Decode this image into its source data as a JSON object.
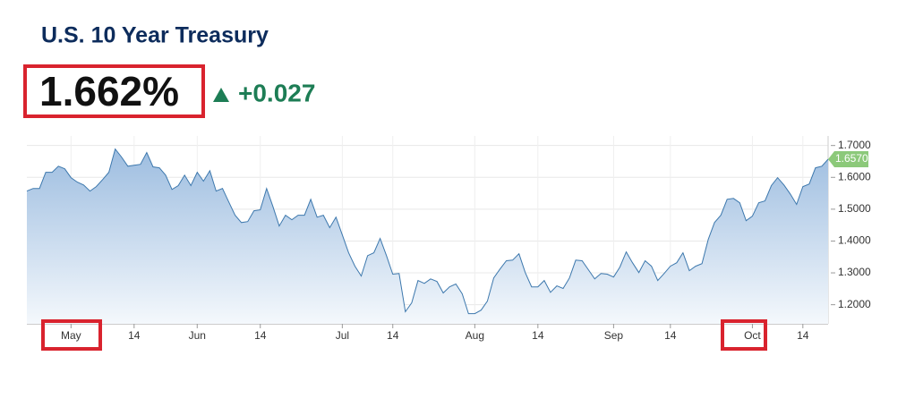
{
  "title": "U.S. 10 Year Treasury",
  "price": "1.662%",
  "change": "+0.027",
  "chart_data": {
    "type": "area",
    "color": "#3d78ad",
    "grid": true,
    "categories": [
      null,
      null,
      null,
      null,
      null,
      null,
      null,
      "May",
      null,
      null,
      null,
      null,
      null,
      null,
      null,
      null,
      null,
      "14",
      null,
      null,
      null,
      null,
      null,
      null,
      null,
      null,
      null,
      "Jun",
      null,
      null,
      null,
      null,
      null,
      null,
      null,
      null,
      null,
      "14",
      null,
      null,
      null,
      null,
      null,
      null,
      null,
      null,
      null,
      null,
      null,
      null,
      "Jul",
      null,
      null,
      null,
      null,
      null,
      null,
      null,
      "14",
      null,
      null,
      null,
      null,
      null,
      null,
      null,
      null,
      null,
      null,
      null,
      null,
      "Aug",
      null,
      null,
      null,
      null,
      null,
      null,
      null,
      null,
      null,
      "14",
      null,
      null,
      null,
      null,
      null,
      null,
      null,
      null,
      null,
      null,
      null,
      "Sep",
      null,
      null,
      null,
      null,
      null,
      null,
      null,
      null,
      "14",
      null,
      null,
      null,
      null,
      null,
      null,
      null,
      null,
      null,
      null,
      null,
      null,
      "Oct",
      null,
      null,
      null,
      null,
      null,
      null,
      null,
      "14",
      null,
      null,
      null,
      null
    ],
    "values": [
      1.557,
      1.565,
      1.565,
      1.616,
      1.616,
      1.635,
      1.627,
      1.599,
      1.585,
      1.576,
      1.557,
      1.571,
      1.593,
      1.616,
      1.689,
      1.664,
      1.635,
      1.638,
      1.641,
      1.678,
      1.633,
      1.63,
      1.607,
      1.562,
      1.574,
      1.607,
      1.574,
      1.616,
      1.588,
      1.621,
      1.557,
      1.565,
      1.523,
      1.481,
      1.458,
      1.461,
      1.495,
      1.498,
      1.565,
      1.509,
      1.447,
      1.481,
      1.467,
      1.481,
      1.481,
      1.531,
      1.475,
      1.481,
      1.442,
      1.475,
      1.419,
      1.363,
      1.321,
      1.29,
      1.354,
      1.363,
      1.408,
      1.354,
      1.296,
      1.298,
      1.178,
      1.206,
      1.276,
      1.267,
      1.281,
      1.273,
      1.237,
      1.256,
      1.265,
      1.234,
      1.172,
      1.172,
      1.183,
      1.211,
      1.284,
      1.312,
      1.338,
      1.34,
      1.36,
      1.301,
      1.256,
      1.256,
      1.276,
      1.239,
      1.259,
      1.251,
      1.284,
      1.34,
      1.338,
      1.31,
      1.281,
      1.298,
      1.296,
      1.287,
      1.318,
      1.366,
      1.332,
      1.301,
      1.338,
      1.321,
      1.276,
      1.298,
      1.321,
      1.332,
      1.363,
      1.307,
      1.321,
      1.329,
      1.405,
      1.458,
      1.481,
      1.531,
      1.534,
      1.52,
      1.464,
      1.478,
      1.52,
      1.526,
      1.574,
      1.599,
      1.576,
      1.548,
      1.515,
      1.571,
      1.579,
      1.63,
      1.635,
      1.657
    ],
    "last_label": "1.6570",
    "last_color": "#8cc97a",
    "ylim": [
      1.14,
      1.73
    ],
    "yticks": [
      {
        "value": 1.2,
        "label": "1.2000"
      },
      {
        "value": 1.3,
        "label": "1.3000"
      },
      {
        "value": 1.4,
        "label": "1.4000"
      },
      {
        "value": 1.5,
        "label": "1.5000"
      },
      {
        "value": 1.6,
        "label": "1.6000"
      },
      {
        "value": 1.7,
        "label": "1.7000"
      }
    ]
  }
}
